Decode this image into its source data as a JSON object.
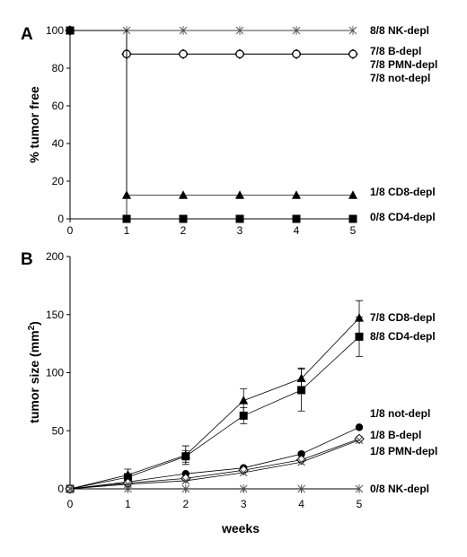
{
  "figure": {
    "panels": [
      "A",
      "B"
    ]
  },
  "chart_data": [
    {
      "panel": "A",
      "type": "line",
      "xlabel": "",
      "ylabel": "% tumor free",
      "xlim": [
        0,
        5
      ],
      "ylim": [
        0,
        100
      ],
      "x_ticks": [
        "0",
        "1",
        "2",
        "3",
        "4",
        "5"
      ],
      "y_ticks": [
        "0",
        "20",
        "40",
        "60",
        "80",
        "100"
      ],
      "grid": false,
      "step": true,
      "series": [
        {
          "name": "8/8 NK-depl",
          "marker": "asterisk",
          "x": [
            0,
            1,
            2,
            3,
            4,
            5
          ],
          "values": [
            100,
            100,
            100,
            100,
            100,
            100
          ]
        },
        {
          "name": "7/8 B-depl",
          "marker": "diamond-open",
          "x": [
            0,
            1,
            2,
            3,
            4,
            5
          ],
          "values": [
            100,
            87.5,
            87.5,
            87.5,
            87.5,
            87.5
          ]
        },
        {
          "name": "7/8 PMN-depl",
          "marker": "none",
          "x": [
            0,
            1,
            2,
            3,
            4,
            5
          ],
          "values": [
            100,
            87.5,
            87.5,
            87.5,
            87.5,
            87.5
          ]
        },
        {
          "name": "7/8 not-depl",
          "marker": "circle-open",
          "x": [
            0,
            1,
            2,
            3,
            4,
            5
          ],
          "values": [
            100,
            87.5,
            87.5,
            87.5,
            87.5,
            87.5
          ]
        },
        {
          "name": "1/8 CD8-depl",
          "marker": "triangle-filled",
          "x": [
            0,
            1,
            2,
            3,
            4,
            5
          ],
          "values": [
            100,
            12.5,
            12.5,
            12.5,
            12.5,
            12.5
          ]
        },
        {
          "name": "0/8 CD4-depl",
          "marker": "square-filled",
          "x": [
            0,
            1,
            2,
            3,
            4,
            5
          ],
          "values": [
            100,
            0,
            0,
            0,
            0,
            0
          ]
        }
      ]
    },
    {
      "panel": "B",
      "type": "line",
      "xlabel": "weeks",
      "ylabel": "tumor size (mm",
      "ylabel_sup": "2",
      "ylabel_tail": ")",
      "xlim": [
        0,
        5
      ],
      "ylim": [
        0,
        200
      ],
      "x_ticks": [
        "0",
        "1",
        "2",
        "3",
        "4",
        "5"
      ],
      "y_ticks": [
        "0",
        "50",
        "100",
        "150",
        "200"
      ],
      "grid": false,
      "series": [
        {
          "name": "7/8 CD8-depl",
          "marker": "triangle-filled",
          "x": [
            0,
            1,
            2,
            3,
            4,
            5
          ],
          "values": [
            0,
            12,
            29,
            76,
            95,
            147
          ],
          "error": [
            0,
            5,
            8,
            10,
            9,
            15
          ]
        },
        {
          "name": "8/8 CD4-depl",
          "marker": "square-filled",
          "x": [
            0,
            1,
            2,
            3,
            4,
            5
          ],
          "values": [
            0,
            10,
            28,
            63,
            85,
            131
          ],
          "error": [
            0,
            3,
            5,
            7,
            18,
            17
          ]
        },
        {
          "name": "1/8 not-depl",
          "marker": "circle-filled",
          "x": [
            0,
            1,
            2,
            3,
            4,
            5
          ],
          "values": [
            0,
            6,
            13,
            18,
            30,
            53
          ],
          "error": [
            0,
            0,
            0,
            0,
            0,
            0
          ]
        },
        {
          "name": "1/8 B-depl",
          "marker": "diamond-open",
          "x": [
            0,
            1,
            2,
            3,
            4,
            5
          ],
          "values": [
            0,
            5,
            9,
            16,
            25,
            43
          ],
          "error": [
            0,
            0,
            0,
            0,
            0,
            0
          ]
        },
        {
          "name": "1/8 PMN-depl",
          "marker": "cross",
          "x": [
            0,
            1,
            2,
            3,
            4,
            5
          ],
          "values": [
            0,
            4,
            7,
            14,
            23,
            42
          ],
          "error": [
            0,
            0,
            0,
            0,
            0,
            0
          ]
        },
        {
          "name": "0/8 NK-depl",
          "marker": "asterisk",
          "x": [
            0,
            1,
            2,
            3,
            4,
            5
          ],
          "values": [
            0,
            0,
            0,
            0,
            0,
            0
          ],
          "error": [
            0,
            0,
            0,
            0,
            0,
            0
          ]
        }
      ]
    }
  ]
}
